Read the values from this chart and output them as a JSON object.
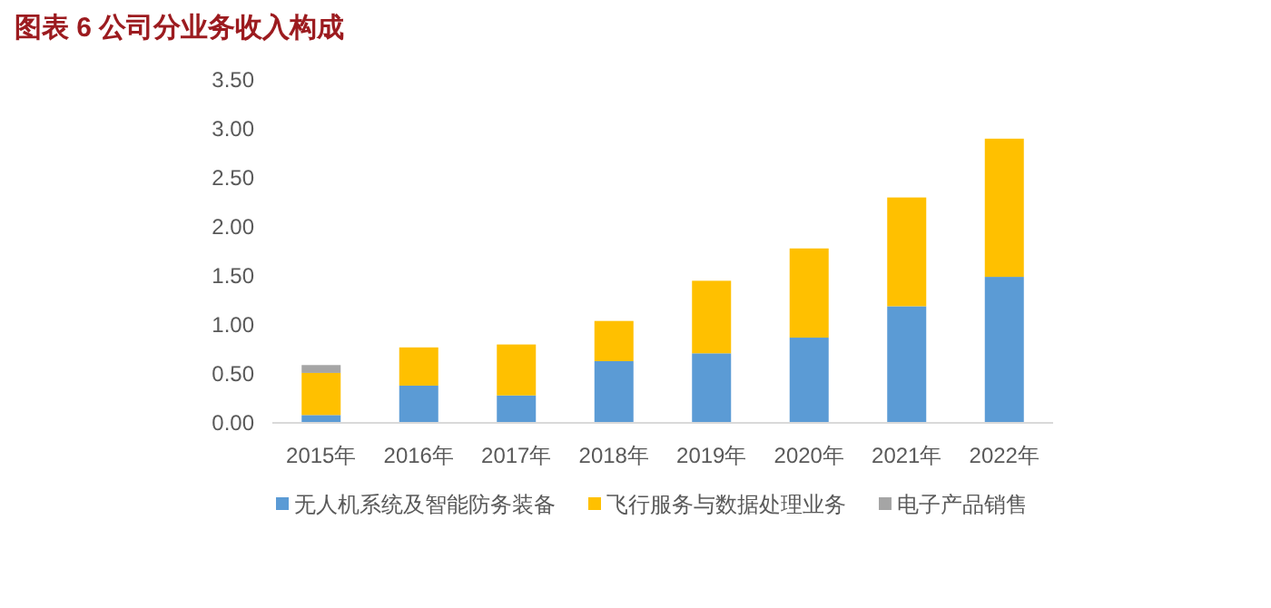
{
  "chart_data": {
    "type": "bar",
    "title": "图表 6   公司分业务收入构成",
    "stacked": true,
    "categories": [
      "2015年",
      "2016年",
      "2017年",
      "2018年",
      "2019年",
      "2020年",
      "2021年",
      "2022年"
    ],
    "series": [
      {
        "name": "无人机系统及智能防务装备",
        "color": "#5b9bd5",
        "values": [
          0.08,
          0.38,
          0.28,
          0.63,
          0.71,
          0.87,
          1.19,
          1.49
        ]
      },
      {
        "name": "飞行服务与数据处理业务",
        "color": "#ffc000",
        "values": [
          0.43,
          0.39,
          0.52,
          0.41,
          0.74,
          0.91,
          1.11,
          1.41
        ]
      },
      {
        "name": "电子产品销售",
        "color": "#a5a5a5",
        "values": [
          0.08,
          null,
          null,
          null,
          null,
          null,
          null,
          null
        ]
      }
    ],
    "ylim": [
      0,
      3.5
    ],
    "yticks": [
      {
        "value": 0,
        "label": "0.00"
      },
      {
        "value": 0.5,
        "label": "0.50"
      },
      {
        "value": 1,
        "label": "1.00"
      },
      {
        "value": 1.5,
        "label": "1.50"
      },
      {
        "value": 2,
        "label": "2.00"
      },
      {
        "value": 2.5,
        "label": "2.50"
      },
      {
        "value": 3,
        "label": "3.00"
      },
      {
        "value": 3.5,
        "label": "3.50"
      }
    ],
    "grid": false,
    "legend": "bottom"
  }
}
